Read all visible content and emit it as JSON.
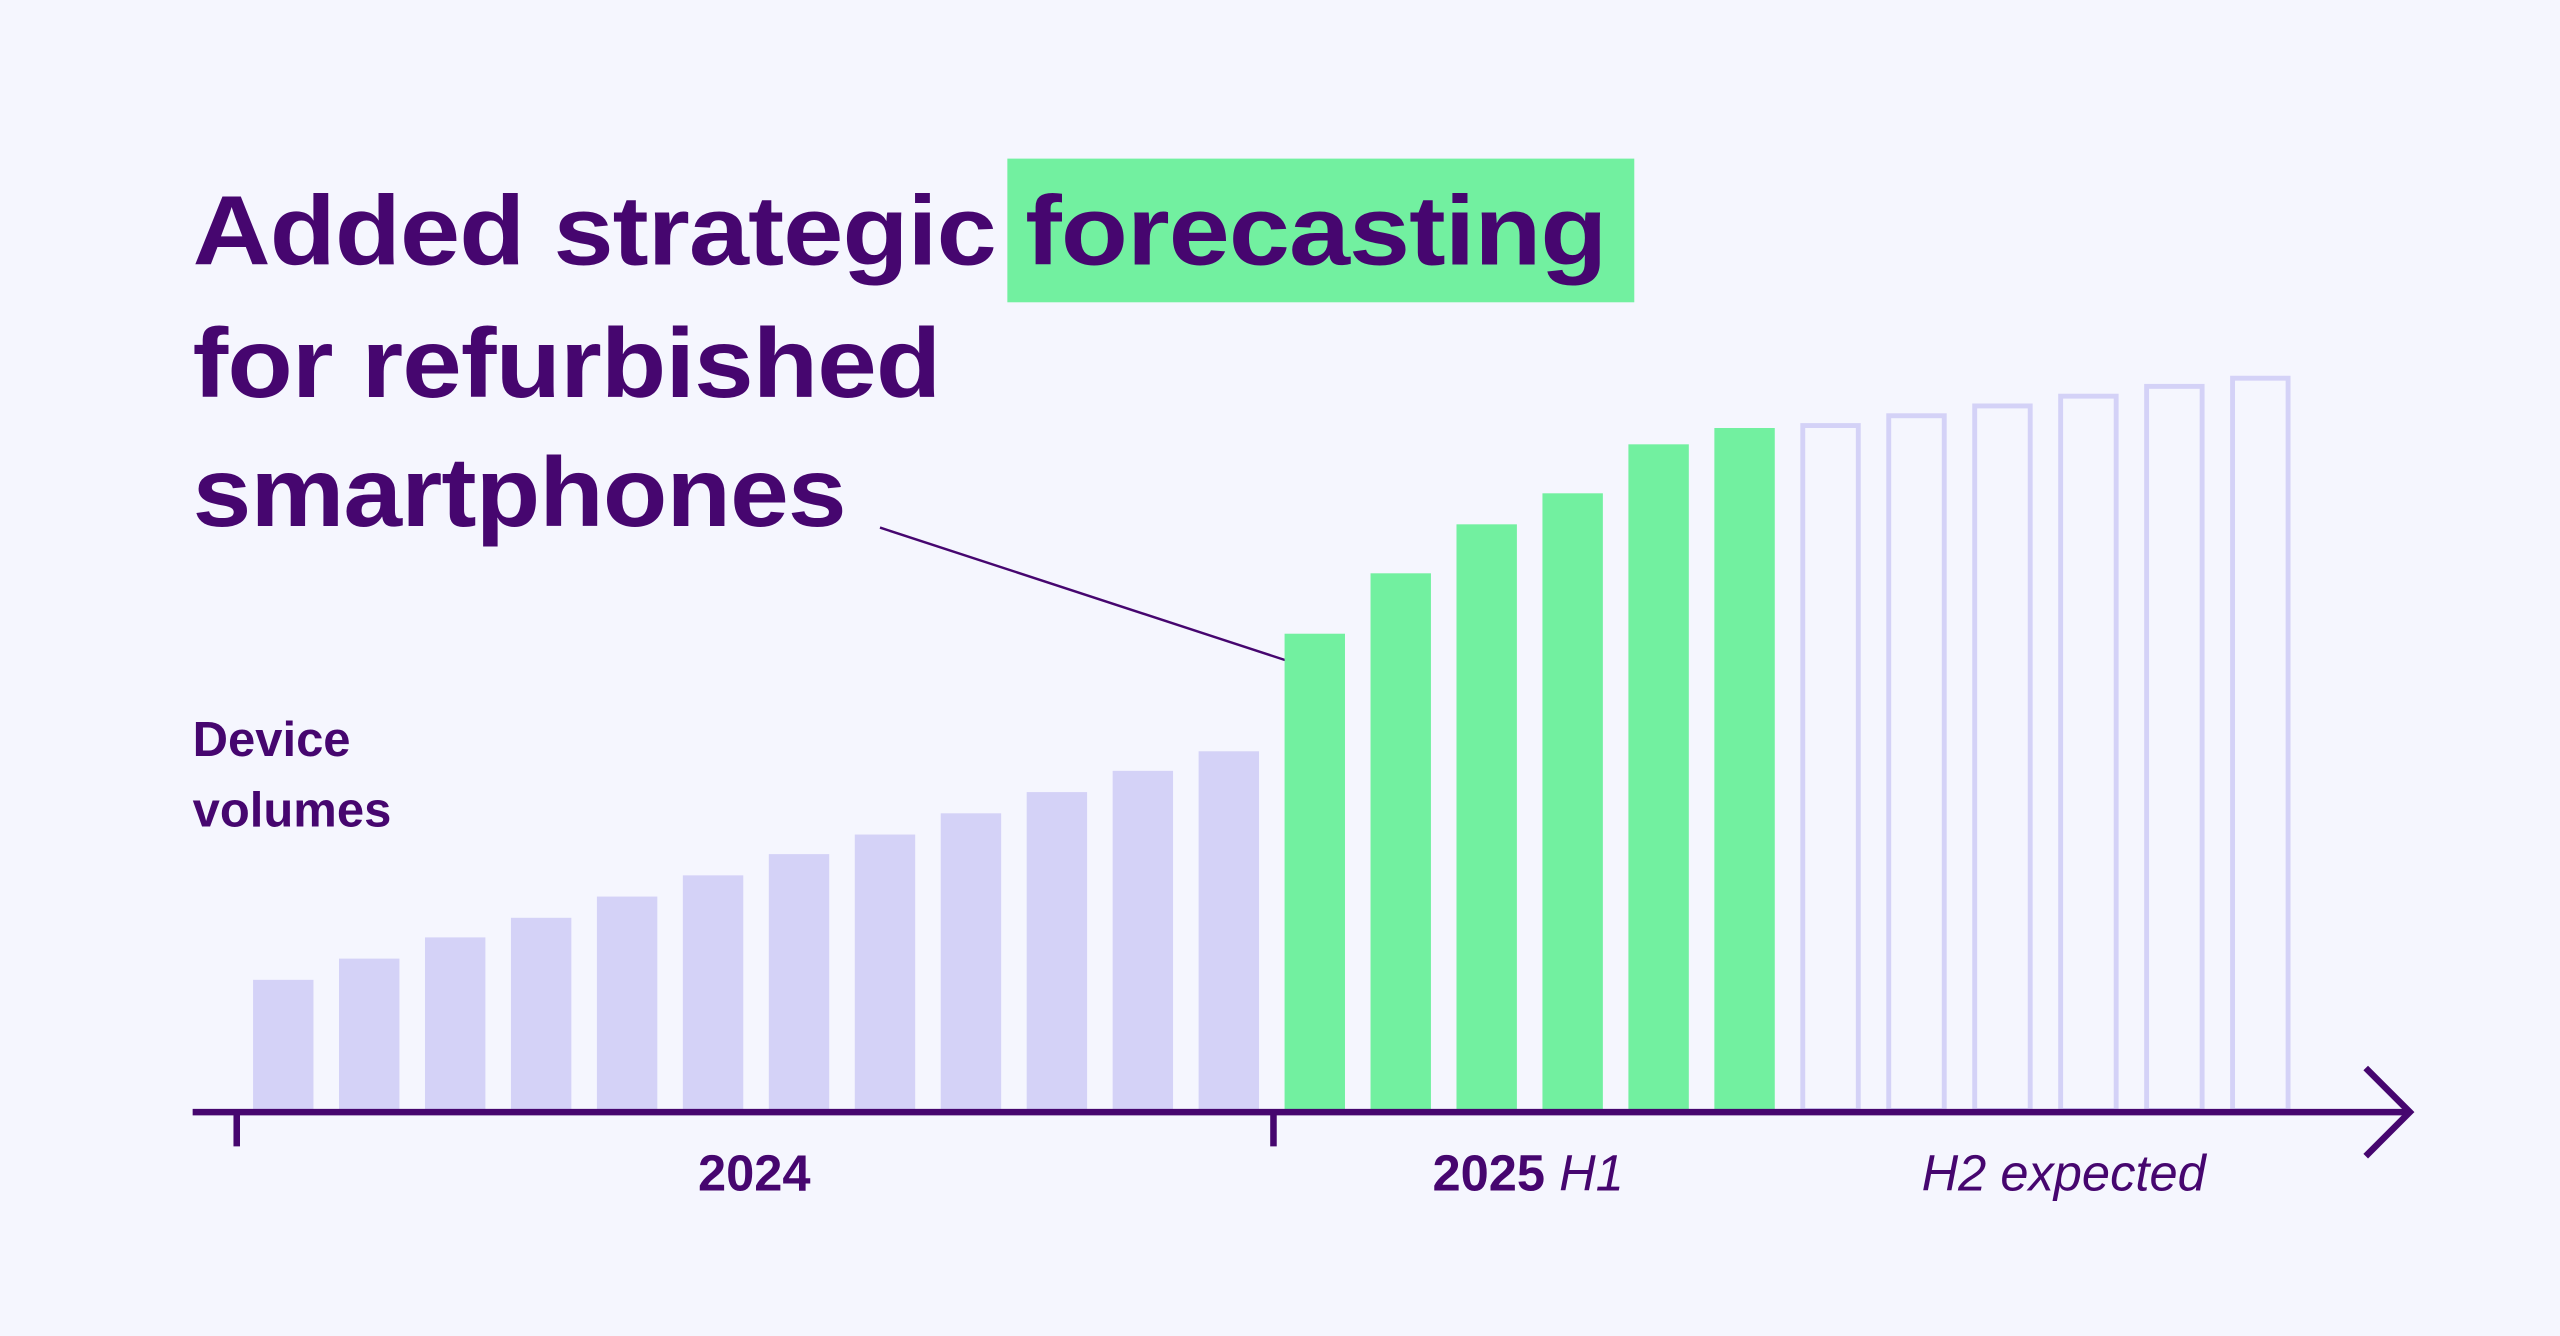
{
  "colors": {
    "background": "#f5f6fe",
    "text": "#46066f",
    "green": "#72f0a0",
    "lavender": "#d4d2f7"
  },
  "title": {
    "line1_prefix": "Added strategic",
    "line1_highlight": "forecasting",
    "line2": "for refurbished",
    "line3": "smartphones"
  },
  "chart_data": {
    "type": "bar",
    "title": "Added strategic forecasting for refurbished smartphones",
    "ylabel": "Device volumes",
    "xlabel": "",
    "groups": [
      {
        "name": "2024",
        "label_bold": "2024",
        "label_italic": "",
        "values": [
          80,
          93,
          106,
          118,
          131,
          144,
          157,
          169,
          182,
          195,
          208,
          220
        ],
        "style": "filled-lavender"
      },
      {
        "name": "2025 H1",
        "label_bold": "2025",
        "label_italic": "H1",
        "values": [
          292,
          329,
          359,
          378,
          408,
          418
        ],
        "style": "filled-green"
      },
      {
        "name": "H2 expected",
        "label_bold": "",
        "label_italic": "H2 expected",
        "values": [
          421,
          427,
          433,
          439,
          445,
          450
        ],
        "style": "outline-lavender"
      }
    ],
    "ylim": [
      0,
      460
    ],
    "grid": false,
    "annotation": "Line from title to first 2025 H1 bar"
  }
}
